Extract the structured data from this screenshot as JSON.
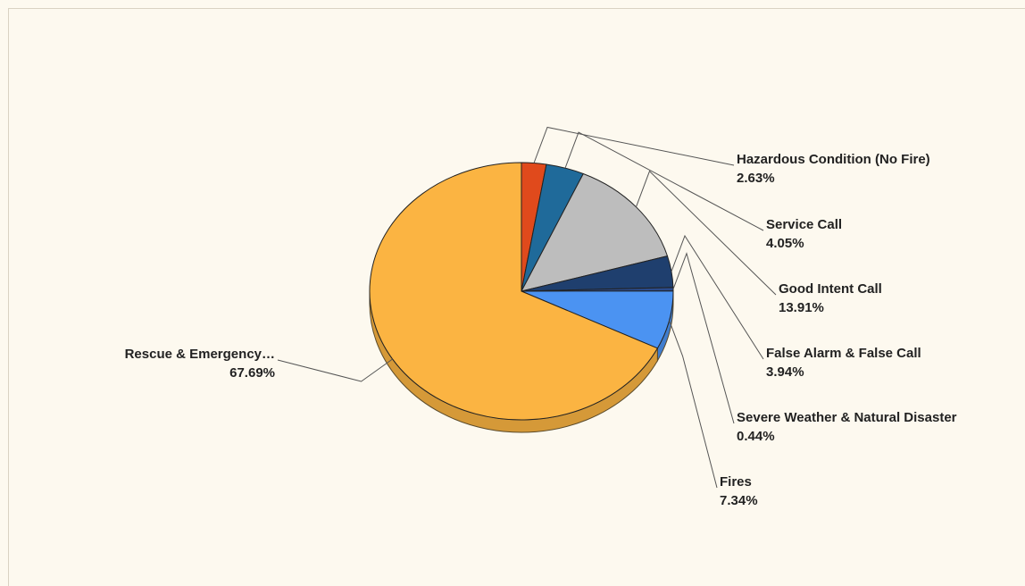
{
  "chart_data": {
    "type": "pie",
    "title": "",
    "style": "3d-pie",
    "legend": "none",
    "slices": [
      {
        "label": "Hazardous Condition (No Fire)",
        "value": 2.63,
        "value_label": "2.63%",
        "color": "#e04a1c"
      },
      {
        "label": "Service Call",
        "value": 4.05,
        "value_label": "4.05%",
        "color": "#1f6a9a"
      },
      {
        "label": "Good Intent Call",
        "value": 13.91,
        "value_label": "13.91%",
        "color": "#bdbdbd"
      },
      {
        "label": "False Alarm & False Call",
        "value": 3.94,
        "value_label": "3.94%",
        "color": "#1f3f6e"
      },
      {
        "label": "Severe Weather & Natural Disaster",
        "value": 0.44,
        "value_label": "0.44%",
        "color": "#2a4a8a"
      },
      {
        "label": "Fires",
        "value": 7.34,
        "value_label": "7.34%",
        "color": "#4b93f2"
      },
      {
        "label": "Rescue & Emergency…",
        "value": 67.69,
        "value_label": "67.69%",
        "color": "#fbb442"
      }
    ]
  }
}
